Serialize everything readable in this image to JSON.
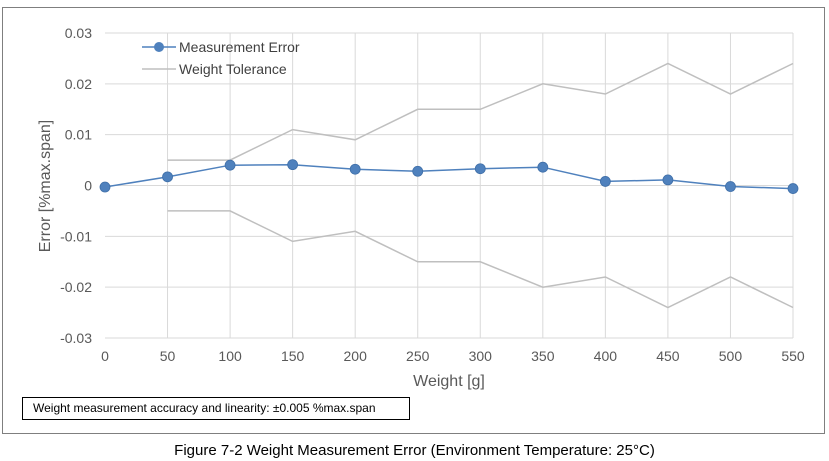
{
  "chart_data": {
    "type": "line",
    "title": "",
    "xlabel": "Weight [g]",
    "ylabel": "Error [%max.span]",
    "xlim": [
      0,
      550
    ],
    "ylim": [
      -0.03,
      0.03
    ],
    "x_ticks": [
      0,
      50,
      100,
      150,
      200,
      250,
      300,
      350,
      400,
      450,
      500,
      550
    ],
    "y_ticks": [
      -0.03,
      -0.02,
      -0.01,
      0,
      0.01,
      0.02,
      0.03
    ],
    "y_tick_labels": [
      "-0.03",
      "-0.02",
      "-0.01",
      "0",
      "0.01",
      "0.02",
      "0.03"
    ],
    "grid": "horizontal",
    "legend_placement": "top-left",
    "series": [
      {
        "name": "Measurement Error",
        "color": "#4f81bd",
        "marker": "circle",
        "points": [
          [
            0,
            -0.0003
          ],
          [
            50,
            0.0017
          ],
          [
            100,
            0.004
          ],
          [
            150,
            0.0041
          ],
          [
            200,
            0.0032
          ],
          [
            250,
            0.0028
          ],
          [
            300,
            0.0033
          ],
          [
            350,
            0.0036
          ],
          [
            400,
            0.0008
          ],
          [
            450,
            0.0011
          ],
          [
            500,
            -0.0002
          ],
          [
            550,
            -0.0006
          ]
        ]
      },
      {
        "name": "Weight Tolerance",
        "color": "#bfbfbf",
        "marker": "none",
        "points": [
          [
            50,
            0.005
          ],
          [
            100,
            0.005
          ],
          [
            150,
            0.011
          ],
          [
            200,
            0.009
          ],
          [
            250,
            0.015
          ],
          [
            300,
            0.015
          ],
          [
            350,
            0.02
          ],
          [
            400,
            0.018
          ],
          [
            450,
            0.024
          ],
          [
            500,
            0.018
          ],
          [
            550,
            0.024
          ]
        ]
      },
      {
        "name": "",
        "color": "#bfbfbf",
        "marker": "none",
        "points": [
          [
            50,
            -0.005
          ],
          [
            100,
            -0.005
          ],
          [
            150,
            -0.011
          ],
          [
            200,
            -0.009
          ],
          [
            250,
            -0.015
          ],
          [
            300,
            -0.015
          ],
          [
            350,
            -0.02
          ],
          [
            400,
            -0.018
          ],
          [
            450,
            -0.024
          ],
          [
            500,
            -0.018
          ],
          [
            550,
            -0.024
          ]
        ]
      }
    ]
  },
  "note": "Weight measurement accuracy and linearity: ±0.005 %max.span",
  "caption": "Figure 7-2 Weight Measurement Error (Environment Temperature: 25°C)"
}
